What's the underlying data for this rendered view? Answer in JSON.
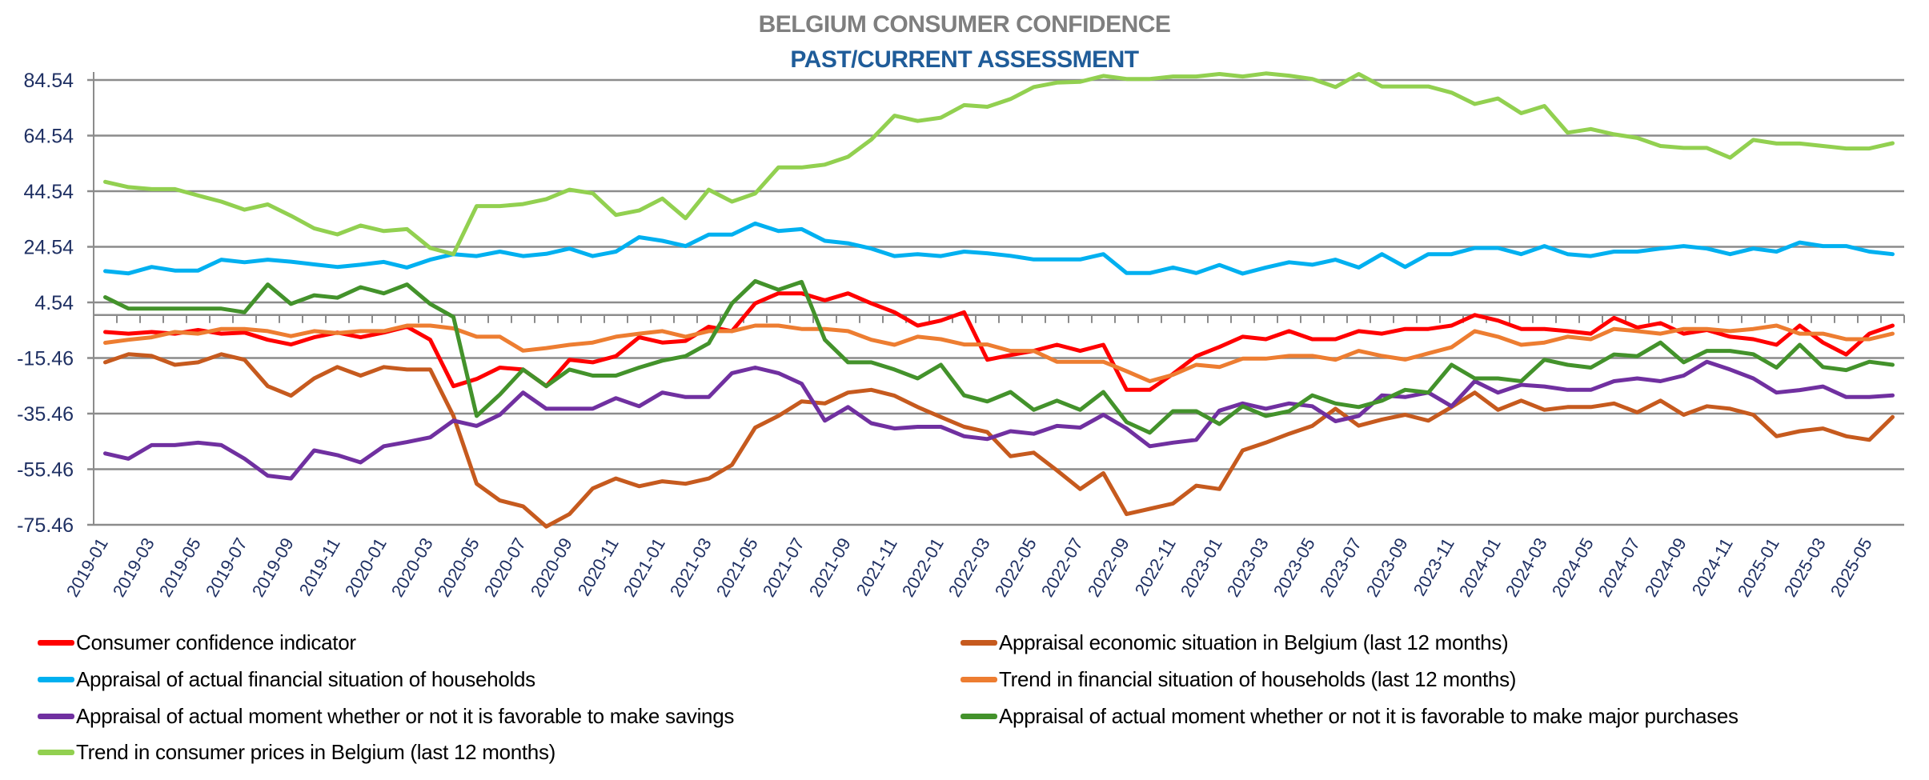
{
  "chart_data": {
    "type": "line",
    "title": "BELGIUM CONSUMER CONFIDENCE",
    "subtitle": "PAST/CURRENT ASSESSMENT",
    "xlabel": "",
    "ylabel": "",
    "ylim": [
      -75.46,
      84.54
    ],
    "y_ticks": [
      "84.54",
      "64.54",
      "44.54",
      "24.54",
      "4.54",
      "-15.46",
      "-35.46",
      "-55.46",
      "-75.46"
    ],
    "y_tick_values": [
      84.54,
      64.54,
      44.54,
      24.54,
      4.54,
      -15.46,
      -35.46,
      -55.46,
      -75.46
    ],
    "grid": true,
    "legend_position": "bottom",
    "x": [
      "2019-01",
      "2019-02",
      "2019-03",
      "2019-04",
      "2019-05",
      "2019-06",
      "2019-07",
      "2019-08",
      "2019-09",
      "2019-10",
      "2019-11",
      "2019-12",
      "2020-01",
      "2020-02",
      "2020-03",
      "2020-04",
      "2020-05",
      "2020-06",
      "2020-07",
      "2020-08",
      "2020-09",
      "2020-10",
      "2020-11",
      "2020-12",
      "2021-01",
      "2021-02",
      "2021-03",
      "2021-04",
      "2021-05",
      "2021-06",
      "2021-07",
      "2021-08",
      "2021-09",
      "2021-10",
      "2021-11",
      "2021-12",
      "2022-01",
      "2022-02",
      "2022-03",
      "2022-04",
      "2022-05",
      "2022-06",
      "2022-07",
      "2022-08",
      "2022-09",
      "2022-10",
      "2022-11",
      "2022-12",
      "2023-01",
      "2023-02",
      "2023-03",
      "2023-04",
      "2023-05",
      "2023-06",
      "2023-07",
      "2023-08",
      "2023-09",
      "2023-10",
      "2023-11",
      "2023-12",
      "2024-01",
      "2024-02",
      "2024-03",
      "2024-04",
      "2024-05",
      "2024-06",
      "2024-07",
      "2024-08",
      "2024-09",
      "2024-10",
      "2024-11",
      "2024-12",
      "2025-01",
      "2025-02",
      "2025-03",
      "2025-04",
      "2025-05",
      "2025-06"
    ],
    "x_tick_labels": [
      "2019-01",
      "2019-03",
      "2019-05",
      "2019-07",
      "2019-09",
      "2019-11",
      "2020-01",
      "2020-03",
      "2020-05",
      "2020-07",
      "2020-09",
      "2020-11",
      "2021-01",
      "2021-03",
      "2021-05",
      "2021-07",
      "2021-09",
      "2021-11",
      "2022-01",
      "2022-03",
      "2022-05",
      "2022-07",
      "2022-09",
      "2022-11",
      "2023-01",
      "2023-03",
      "2023-05",
      "2023-07",
      "2023-09",
      "2023-11",
      "2024-01",
      "2024-03",
      "2024-05",
      "2024-07",
      "2024-09",
      "2024-11",
      "2025-01",
      "2025-03",
      "2025-05"
    ],
    "series": [
      {
        "name": "Consumer confidence indicator",
        "color": "#ff0000",
        "values": [
          -6.1,
          -6.7,
          -6.1,
          -6.7,
          -5.4,
          -6.7,
          -6.3,
          -8.9,
          -10.6,
          -8,
          -6.3,
          -8,
          -6.3,
          -4.2,
          -8.9,
          -25.6,
          -23,
          -18.9,
          -19.6,
          -25.6,
          -16.1,
          -17,
          -14.8,
          -8,
          -9.9,
          -9.3,
          -4.2,
          -5.8,
          4.2,
          7.8,
          7.8,
          5.3,
          7.8,
          4.2,
          1,
          -3.8,
          -2,
          1,
          -16.1,
          -14.4,
          -12.9,
          -10.7,
          -12.9,
          -10.7,
          -26.9,
          -26.9,
          -21.2,
          -14.8,
          -11.5,
          -7.8,
          -8.7,
          -5.8,
          -8.7,
          -8.7,
          -5.8,
          -6.7,
          -5,
          -5,
          -3.8,
          0,
          -2,
          -5,
          -5,
          -5.8,
          -6.7,
          -1,
          -4.5,
          -2.9,
          -6.7,
          -5.4,
          -7.8,
          -8.7,
          -10.7,
          -3.8,
          -9.9,
          -14.2,
          -6.7,
          -3.8
        ]
      },
      {
        "name": "Appraisal economic situation in Belgium (last 12 months)",
        "color": "#c65a1e",
        "values": [
          -17,
          -14.1,
          -14.7,
          -17.9,
          -17,
          -14.1,
          -16.1,
          -25.6,
          -29,
          -22.8,
          -18.7,
          -21.8,
          -18.7,
          -19.6,
          -19.6,
          -36.3,
          -60.7,
          -66.7,
          -68.8,
          -76.1,
          -71.6,
          -62.4,
          -58.8,
          -61.6,
          -59.8,
          -60.7,
          -58.8,
          -53.9,
          -40.5,
          -36.3,
          -31.1,
          -31.8,
          -27.9,
          -26.9,
          -29,
          -33.1,
          -36.7,
          -40.2,
          -42.1,
          -50.8,
          -49.5,
          -55.9,
          -62.6,
          -56.9,
          -71.6,
          -69.7,
          -67.8,
          -61.4,
          -62.6,
          -48.7,
          -45.9,
          -42.7,
          -39.9,
          -33.7,
          -39.8,
          -37.6,
          -35.9,
          -38,
          -33.1,
          -27.9,
          -34.1,
          -30.8,
          -34.1,
          -33.1,
          -33.1,
          -31.8,
          -35,
          -30.8,
          -35.9,
          -32.8,
          -33.7,
          -35.9,
          -43.6,
          -41.8,
          -40.8,
          -43.6,
          -44.9,
          -36.7
        ]
      },
      {
        "name": "Appraisal of actual financial situation of households",
        "color": "#00b0f0",
        "values": [
          15.8,
          15,
          17.3,
          16,
          16,
          19.9,
          19,
          19.9,
          19.2,
          18.2,
          17.3,
          18.1,
          19.1,
          17.1,
          19.9,
          21.9,
          21.2,
          22.8,
          21.2,
          22,
          23.9,
          21.2,
          22.8,
          28,
          26.7,
          24.8,
          28.9,
          28.9,
          32.9,
          30.2,
          30.9,
          26.7,
          25.8,
          23.9,
          21.2,
          21.9,
          21.2,
          22.8,
          22.2,
          21.3,
          20,
          20,
          20,
          21.9,
          15.1,
          15.1,
          17.1,
          15.1,
          18,
          14.9,
          17.1,
          19,
          18.1,
          19.9,
          17.1,
          21.9,
          17.3,
          21.9,
          21.9,
          24.1,
          24.1,
          21.9,
          24.8,
          21.9,
          21.2,
          22.8,
          22.8,
          23.9,
          24.8,
          23.9,
          21.9,
          23.9,
          22.8,
          26.1,
          24.8,
          24.8,
          22.8,
          21.9
        ]
      },
      {
        "name": "Trend in financial situation of households (last 12 months)",
        "color": "#ed7d31",
        "values": [
          -10,
          -8.9,
          -8,
          -6.1,
          -6.7,
          -5,
          -5,
          -5.8,
          -7.6,
          -5.8,
          -6.5,
          -5.8,
          -5.8,
          -3.8,
          -3.8,
          -4.8,
          -7.8,
          -7.8,
          -12.8,
          -11.9,
          -10.7,
          -9.9,
          -7.8,
          -6.7,
          -5.8,
          -7.8,
          -5.8,
          -5.8,
          -3.8,
          -3.8,
          -5,
          -5,
          -5.8,
          -8.9,
          -10.7,
          -7.8,
          -8.7,
          -10.6,
          -10.6,
          -12.9,
          -12.9,
          -16.8,
          -16.8,
          -16.8,
          -20.2,
          -23.8,
          -21.5,
          -17.9,
          -18.7,
          -15.7,
          -15.7,
          -14.7,
          -14.7,
          -16.1,
          -12.9,
          -14.7,
          -16,
          -13.8,
          -11.6,
          -5.8,
          -7.8,
          -10.7,
          -9.9,
          -7.8,
          -8.7,
          -5,
          -5.8,
          -6.7,
          -5,
          -5,
          -5.8,
          -5,
          -3.8,
          -6.7,
          -6.7,
          -8.7,
          -8.7,
          -6.7
        ]
      },
      {
        "name": "Appraisal of actual moment whether or not it is favorable to make savings",
        "color": "#7030a0",
        "values": [
          -49.8,
          -51.7,
          -46.8,
          -46.8,
          -45.9,
          -46.8,
          -51.7,
          -57.8,
          -58.8,
          -48.7,
          -50.4,
          -53,
          -47.2,
          -45.7,
          -44,
          -38,
          -39.9,
          -35.9,
          -27.9,
          -33.7,
          -33.7,
          -33.7,
          -29.9,
          -32.8,
          -27.9,
          -29.5,
          -29.5,
          -20.9,
          -18.9,
          -20.9,
          -24.7,
          -38,
          -33.1,
          -38.9,
          -40.8,
          -40.2,
          -40.2,
          -43.6,
          -44.6,
          -41.8,
          -42.7,
          -39.9,
          -40.5,
          -35.9,
          -40.8,
          -47.2,
          -45.9,
          -44.9,
          -34.4,
          -31.8,
          -33.7,
          -31.8,
          -32.8,
          -38.2,
          -36.3,
          -28.9,
          -29.5,
          -27.9,
          -32.8,
          -23.8,
          -27.9,
          -25.1,
          -25.7,
          -26.9,
          -26.9,
          -23.8,
          -22.8,
          -23.8,
          -21.8,
          -16.8,
          -19.6,
          -22.8,
          -27.9,
          -27,
          -25.7,
          -29.5,
          -29.5,
          -28.9
        ]
      },
      {
        "name": "Appraisal of actual moment whether or not it is favorable to make major purchases",
        "color": "#43922b",
        "values": [
          6.4,
          2.3,
          2.3,
          2.3,
          2.3,
          2.3,
          1,
          11,
          4,
          7.1,
          6.2,
          10,
          7.8,
          11,
          4,
          -0.7,
          -36.3,
          -28.6,
          -19.6,
          -25.6,
          -19.6,
          -21.8,
          -21.8,
          -18.9,
          -16.4,
          -14.8,
          -10.2,
          4.2,
          12.2,
          9.1,
          11.9,
          -8.9,
          -17,
          -17,
          -19.6,
          -22.8,
          -17.9,
          -28.9,
          -31.1,
          -27.7,
          -34.1,
          -30.8,
          -34.1,
          -27.7,
          -38.5,
          -42.3,
          -34.6,
          -34.6,
          -39.2,
          -32.8,
          -36.3,
          -34.6,
          -28.9,
          -31.8,
          -33.1,
          -30.8,
          -26.9,
          -27.9,
          -17.9,
          -22.8,
          -22.8,
          -23.8,
          -16.1,
          -17.9,
          -18.9,
          -14.2,
          -14.8,
          -9.9,
          -17,
          -12.9,
          -12.9,
          -14.1,
          -18.9,
          -10.7,
          -18.7,
          -19.8,
          -16.8,
          -17.9
        ]
      },
      {
        "name": "Trend in consumer prices in Belgium (last 12 months)",
        "color": "#92d050",
        "values": [
          47.9,
          46,
          45.3,
          45.3,
          43,
          40.8,
          37.9,
          39.8,
          35.7,
          31.2,
          29,
          32.2,
          30.2,
          30.9,
          24.1,
          21.9,
          39.2,
          39.2,
          39.9,
          41.7,
          45.1,
          43.8,
          36,
          37.6,
          41.9,
          34.8,
          45.1,
          40.8,
          43.7,
          53.1,
          53.1,
          54.1,
          56.9,
          63.1,
          71.7,
          69.8,
          71,
          75.5,
          74.9,
          77.7,
          82,
          83.6,
          83.9,
          86,
          84.9,
          84.9,
          85.8,
          85.8,
          86.7,
          85.8,
          86.9,
          86.1,
          84.9,
          82,
          86.7,
          82.2,
          82.2,
          82.2,
          80,
          75.9,
          77.9,
          72.6,
          75.2,
          65.6,
          66.9,
          65,
          63.7,
          60.8,
          60.1,
          60.1,
          56.6,
          63,
          61.7,
          61.7,
          60.8,
          59.9,
          59.9,
          61.8
        ]
      }
    ]
  }
}
